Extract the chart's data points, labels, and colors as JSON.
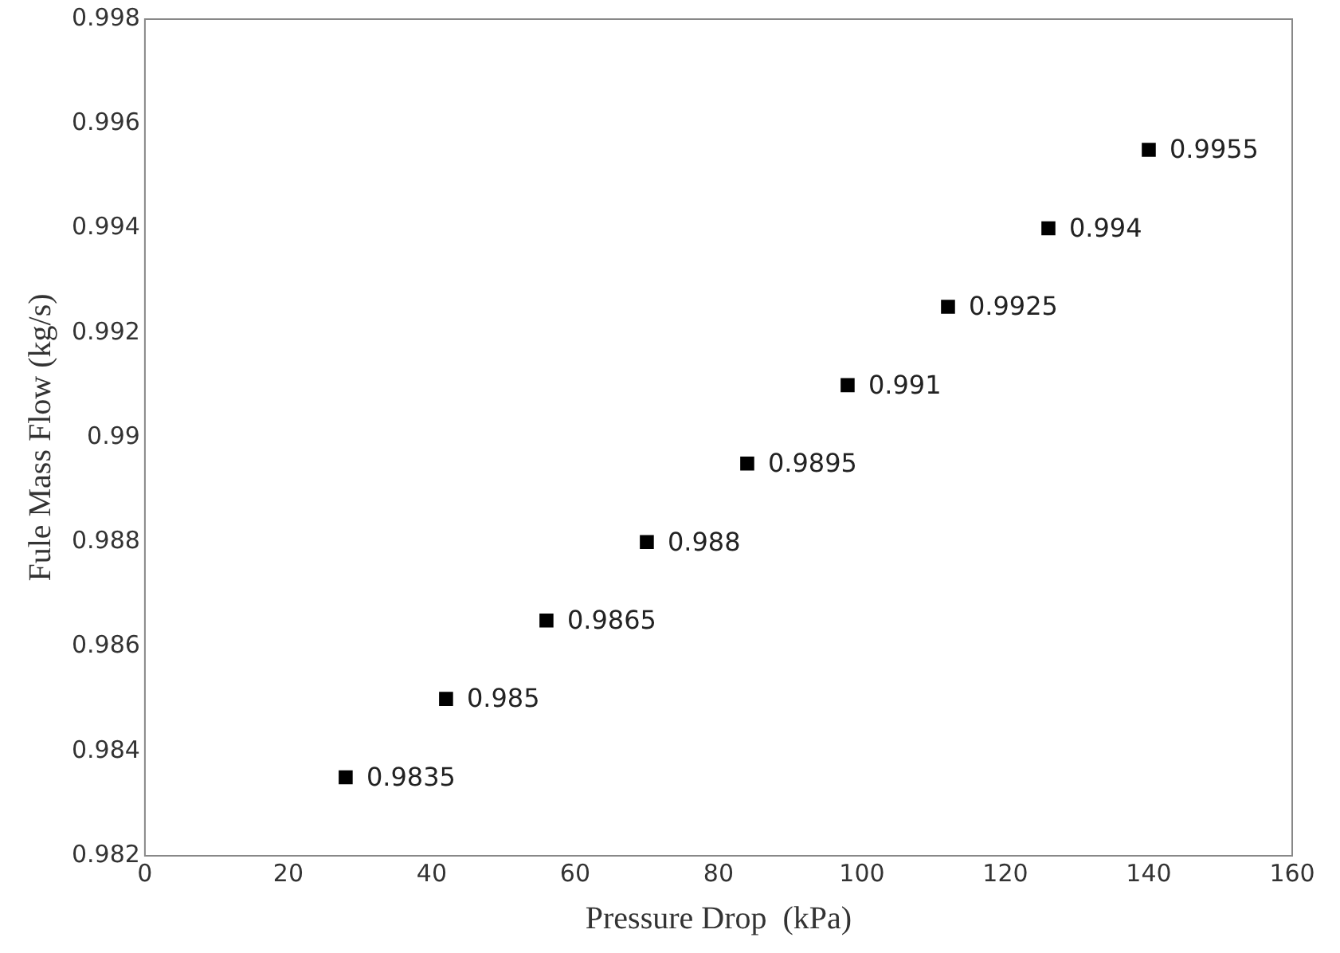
{
  "chart_data": {
    "type": "scatter",
    "xlabel": "Pressure Drop  (kPa)",
    "ylabel": "Fule Mass Flow (kg/s)",
    "x": [
      28,
      42,
      56,
      70,
      84,
      98,
      112,
      126,
      140
    ],
    "values": [
      0.9835,
      0.985,
      0.9865,
      0.988,
      0.9895,
      0.991,
      0.9925,
      0.994,
      0.9955
    ],
    "color": "#000000",
    "marker": "square",
    "data_labels": true,
    "xlim": [
      0,
      160
    ],
    "xticks": [
      0,
      20,
      40,
      60,
      80,
      100,
      120,
      140,
      160
    ],
    "ylim": [
      0.982,
      0.998
    ],
    "yticks": [
      0.982,
      0.984,
      0.986,
      0.988,
      0.99,
      0.992,
      0.994,
      0.996,
      0.998
    ],
    "grid": false,
    "legend": false
  }
}
